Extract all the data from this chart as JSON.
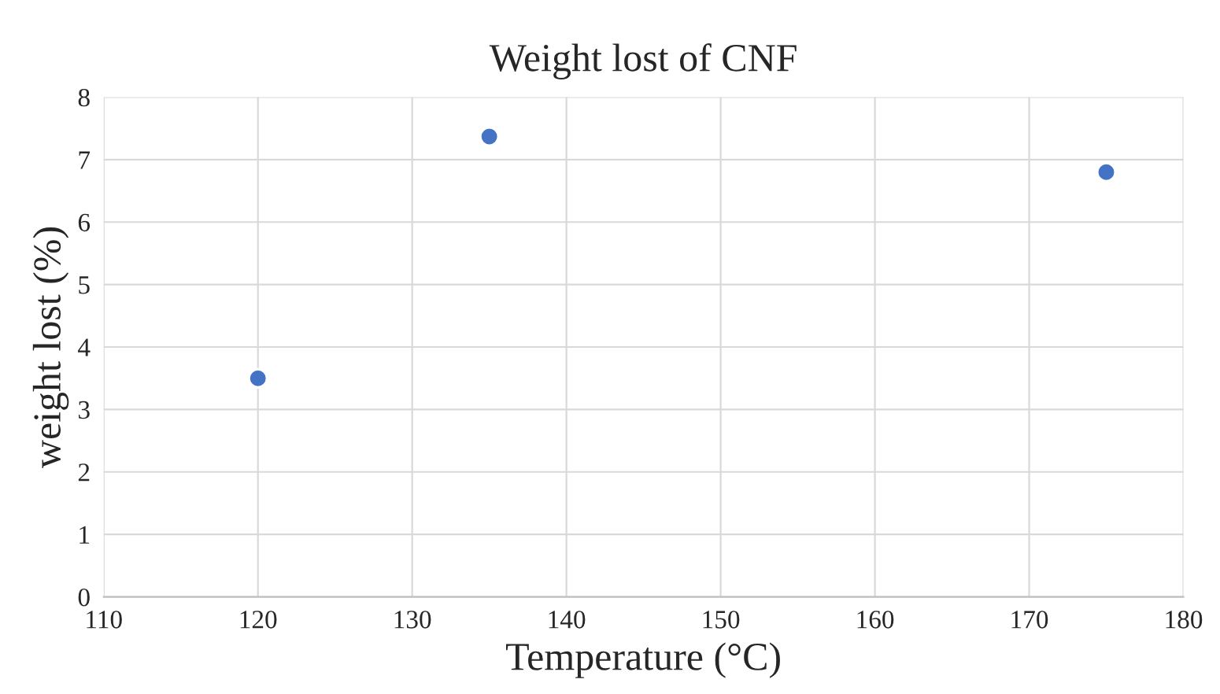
{
  "chart_data": {
    "type": "scatter",
    "title": "Weight lost of CNF",
    "xlabel": "Temperature (°C)",
    "ylabel": "weight lost (%)",
    "x": [
      120,
      135,
      175
    ],
    "series": [
      {
        "color": "#4472c4",
        "values": [
          3.5,
          7.37,
          6.8
        ]
      }
    ],
    "xlim": [
      110,
      180
    ],
    "xticks": [
      110,
      120,
      130,
      140,
      150,
      160,
      170,
      180
    ],
    "ylim": [
      0,
      8
    ],
    "yticks": [
      0,
      1,
      2,
      3,
      4,
      5,
      6,
      7,
      8
    ],
    "grid": true,
    "marker": "circle"
  }
}
